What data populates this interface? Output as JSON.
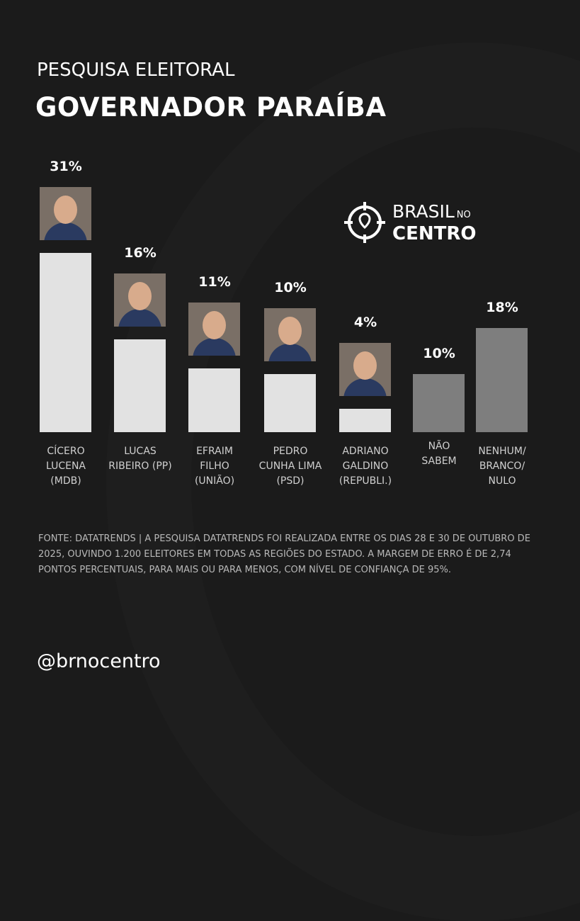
{
  "header": {
    "subtitle": "PESQUISA ELEITORAL",
    "title": "GOVERNADOR PARAÍBA"
  },
  "logo": {
    "line1": "BRASIL",
    "line1_small": "NO",
    "line2": "CENTRO",
    "icon": "crosshair-pin-icon"
  },
  "chart_data": {
    "type": "bar",
    "title": "GOVERNADOR PARAÍBA",
    "subtitle": "PESQUISA ELEITORAL",
    "categories": [
      "CÍCERO LUCENA (MDB)",
      "LUCAS RIBEIRO (PP)",
      "EFRAIM FILHO (UNIÃO)",
      "PEDRO CUNHA LIMA (PSD)",
      "ADRIANO GALDINO (REPUBLI.)",
      "NÃO SABEM",
      "NENHUM/ BRANCO/ NULO"
    ],
    "values": [
      31,
      16,
      11,
      10,
      4,
      10,
      18
    ],
    "unit": "%",
    "xlabel": "",
    "ylabel": "",
    "ylim": [
      0,
      31
    ],
    "grid": false,
    "legend": "none"
  },
  "bars": [
    {
      "pct": "31%",
      "label": [
        "CÍCERO",
        "LUCENA",
        "(MDB)"
      ],
      "color": "#e2e2e2",
      "photo": true
    },
    {
      "pct": "16%",
      "label": [
        "LUCAS",
        "RIBEIRO (PP)"
      ],
      "color": "#e2e2e2",
      "photo": true
    },
    {
      "pct": "11%",
      "label": [
        "EFRAIM",
        "FILHO",
        "(UNIÃO)"
      ],
      "color": "#e2e2e2",
      "photo": true
    },
    {
      "pct": "10%",
      "label": [
        "PEDRO",
        "CUNHA LIMA",
        "(PSD)"
      ],
      "color": "#e2e2e2",
      "photo": true
    },
    {
      "pct": "4%",
      "label": [
        "ADRIANO",
        "GALDINO",
        "(REPUBLI.)"
      ],
      "color": "#e2e2e2",
      "photo": true
    },
    {
      "pct": "10%",
      "label": [
        "NÃO",
        "SABEM"
      ],
      "color": "#7e7e7e",
      "photo": false
    },
    {
      "pct": "18%",
      "label": [
        "NENHUM/",
        "BRANCO/",
        "NULO"
      ],
      "color": "#7e7e7e",
      "photo": false
    }
  ],
  "source": "FONTE: DATATRENDS | A PESQUISA DATATRENDS FOI REALIZADA ENTRE OS DIAS 28 E 30 DE OUTUBRO DE 2025, OUVINDO 1.200 ELEITORES EM TODAS AS REGIÕES DO ESTADO. A MARGEM DE ERRO É DE 2,74 PONTOS PERCENTUAIS, PARA MAIS OU PARA MENOS, COM NÍVEL DE CONFIANÇA DE 95%.",
  "handle": "@brnocentro"
}
